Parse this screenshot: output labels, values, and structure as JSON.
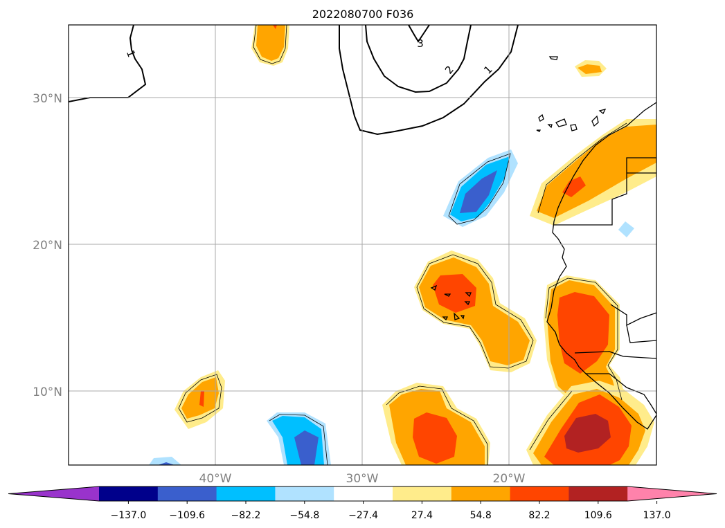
{
  "title": "2022080700 F036",
  "lat_labels": [
    "30°N",
    "20°N",
    "10°N"
  ],
  "lon_labels": [
    "40°W",
    "30°W",
    "20°W"
  ],
  "contour_labels": [
    "1",
    "3",
    "2",
    "1"
  ],
  "colorbar": {
    "tick_labels": [
      "−137.0",
      "−109.6",
      "−82.2",
      "−54.8",
      "−27.4",
      "27.4",
      "54.8",
      "82.2",
      "109.6",
      "137.0"
    ],
    "colors": [
      "#9933cc",
      "#00008b",
      "#3a5fcd",
      "#00bfff",
      "#b0e2ff",
      "#ffffff",
      "#ffec8b",
      "#ffa500",
      "#ff4500",
      "#b22222",
      "#ff82ab"
    ]
  },
  "field_colors": {
    "light_yellow": "#ffec8b",
    "orange": "#ffa500",
    "red_orange": "#ff4500",
    "dark_red": "#b22222",
    "light_blue": "#b0e2ff",
    "cyan": "#00bfff",
    "royal_blue": "#3a5fcd"
  }
}
